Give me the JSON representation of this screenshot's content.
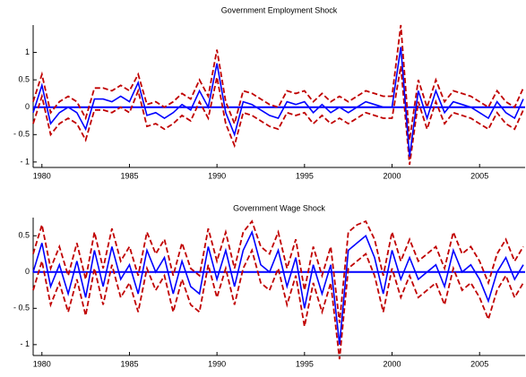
{
  "chart_data": [
    {
      "type": "line",
      "title": "Government Employment Shock",
      "x": [
        1979.5,
        1980,
        1980.5,
        1981,
        1981.5,
        1982,
        1982.5,
        1983,
        1983.5,
        1984,
        1984.5,
        1985,
        1985.5,
        1986,
        1986.5,
        1987,
        1987.5,
        1988,
        1988.5,
        1989,
        1989.5,
        1990,
        1990.5,
        1991,
        1991.5,
        1992,
        1992.5,
        1993,
        1993.5,
        1994,
        1994.5,
        1995,
        1995.5,
        1996,
        1996.5,
        1997,
        1997.5,
        1998,
        1998.5,
        1999,
        1999.5,
        2000,
        2000.5,
        2001,
        2001.5,
        2002,
        2002.5,
        2003,
        2003.5,
        2004,
        2004.5,
        2005,
        2005.5,
        2006,
        2006.5,
        2007,
        2007.5
      ],
      "series": [
        {
          "color": "#c00000",
          "style": "dashed",
          "values": [
            0.1,
            0.6,
            -0.1,
            0.1,
            0.2,
            0.1,
            -0.2,
            0.35,
            0.35,
            0.3,
            0.4,
            0.3,
            0.6,
            0.05,
            0.1,
            0.0,
            0.1,
            0.25,
            0.15,
            0.5,
            0.2,
            1.05,
            0.1,
            -0.3,
            0.3,
            0.25,
            0.15,
            0.05,
            0.0,
            0.3,
            0.25,
            0.3,
            0.1,
            0.25,
            0.1,
            0.2,
            0.1,
            0.2,
            0.3,
            0.25,
            0.2,
            0.2,
            1.5,
            -0.6,
            0.5,
            0.0,
            0.5,
            0.1,
            0.3,
            0.25,
            0.2,
            0.1,
            0.0,
            0.3,
            0.1,
            0.0,
            0.35
          ]
        },
        {
          "color": "#c00000",
          "style": "dashed",
          "values": [
            -0.3,
            0.2,
            -0.5,
            -0.3,
            -0.2,
            -0.3,
            -0.6,
            -0.05,
            -0.05,
            -0.1,
            0.0,
            -0.1,
            0.3,
            -0.35,
            -0.3,
            -0.4,
            -0.3,
            -0.15,
            -0.25,
            0.1,
            -0.2,
            0.55,
            -0.3,
            -0.7,
            -0.1,
            -0.15,
            -0.25,
            -0.35,
            -0.4,
            -0.1,
            -0.15,
            -0.1,
            -0.3,
            -0.15,
            -0.3,
            -0.2,
            -0.3,
            -0.2,
            -0.1,
            -0.15,
            -0.2,
            -0.2,
            0.75,
            -1.05,
            0.1,
            -0.4,
            0.1,
            -0.3,
            -0.1,
            -0.15,
            -0.2,
            -0.3,
            -0.4,
            -0.1,
            -0.3,
            -0.4,
            -0.05
          ]
        },
        {
          "color": "#0000ff",
          "style": "solid",
          "values": [
            -0.1,
            0.4,
            -0.3,
            -0.1,
            0.0,
            -0.1,
            -0.4,
            0.15,
            0.15,
            0.1,
            0.2,
            0.1,
            0.45,
            -0.15,
            -0.1,
            -0.2,
            -0.1,
            0.05,
            -0.05,
            0.3,
            0.0,
            0.8,
            -0.1,
            -0.5,
            0.1,
            0.05,
            -0.05,
            -0.15,
            -0.2,
            0.1,
            0.05,
            0.1,
            -0.1,
            0.05,
            -0.1,
            0.0,
            -0.1,
            0.0,
            0.1,
            0.05,
            0.0,
            0.0,
            1.1,
            -0.9,
            0.3,
            -0.2,
            0.3,
            -0.1,
            0.1,
            0.05,
            0.0,
            -0.1,
            -0.2,
            0.1,
            -0.1,
            -0.2,
            0.15
          ]
        }
      ],
      "zero_line_color": "#0000ff",
      "xlim": [
        1979.5,
        2007.6
      ],
      "xticks": [
        1980,
        1985,
        1990,
        1995,
        2000,
        2005
      ],
      "ylim": [
        -1.1,
        1.5
      ],
      "yticks": [
        {
          "value": -1,
          "label": "- 1"
        },
        {
          "value": -0.5,
          "label": "- 0.5"
        },
        0,
        0.5,
        1
      ]
    },
    {
      "type": "line",
      "title": "Government Wage Shock",
      "x": [
        1979.5,
        1980,
        1980.5,
        1981,
        1981.5,
        1982,
        1982.5,
        1983,
        1983.5,
        1984,
        1984.5,
        1985,
        1985.5,
        1986,
        1986.5,
        1987,
        1987.5,
        1988,
        1988.5,
        1989,
        1989.5,
        1990,
        1990.5,
        1991,
        1991.5,
        1992,
        1992.5,
        1993,
        1993.5,
        1994,
        1994.5,
        1995,
        1995.5,
        1996,
        1996.5,
        1997,
        1997.5,
        1998,
        1998.5,
        1999,
        1999.5,
        2000,
        2000.5,
        2001,
        2001.5,
        2002,
        2002.5,
        2003,
        2003.5,
        2004,
        2004.5,
        2005,
        2005.5,
        2006,
        2006.5,
        2007,
        2007.5
      ],
      "series": [
        {
          "color": "#c00000",
          "style": "dashed",
          "values": [
            0.25,
            0.65,
            0.05,
            0.35,
            -0.05,
            0.4,
            -0.1,
            0.55,
            0.05,
            0.6,
            0.15,
            0.35,
            -0.05,
            0.55,
            0.25,
            0.45,
            -0.05,
            0.4,
            0.05,
            -0.05,
            0.6,
            0.15,
            0.55,
            0.05,
            0.55,
            0.7,
            0.35,
            0.25,
            0.55,
            0.05,
            0.45,
            -0.25,
            0.35,
            -0.05,
            0.35,
            -0.7,
            0.55,
            0.65,
            0.7,
            0.45,
            -0.05,
            0.55,
            0.15,
            0.45,
            0.15,
            0.25,
            0.35,
            0.05,
            0.55,
            0.25,
            0.35,
            0.15,
            -0.15,
            0.25,
            0.45,
            0.15,
            0.35
          ]
        },
        {
          "color": "#c00000",
          "style": "dashed",
          "values": [
            -0.25,
            0.15,
            -0.45,
            -0.15,
            -0.55,
            -0.1,
            -0.6,
            0.05,
            -0.45,
            0.1,
            -0.35,
            -0.15,
            -0.55,
            0.05,
            -0.25,
            -0.05,
            -0.55,
            -0.1,
            -0.45,
            -0.55,
            0.1,
            -0.35,
            0.05,
            -0.45,
            0.05,
            0.3,
            -0.15,
            -0.25,
            0.05,
            -0.45,
            -0.05,
            -0.75,
            -0.15,
            -0.55,
            -0.15,
            -1.2,
            0.05,
            0.15,
            0.25,
            -0.05,
            -0.55,
            0.05,
            -0.35,
            -0.05,
            -0.35,
            -0.25,
            -0.15,
            -0.45,
            0.05,
            -0.25,
            -0.15,
            -0.35,
            -0.65,
            -0.25,
            -0.05,
            -0.35,
            -0.15
          ]
        },
        {
          "color": "#0000ff",
          "style": "solid",
          "values": [
            0.0,
            0.4,
            -0.2,
            0.1,
            -0.3,
            0.15,
            -0.35,
            0.3,
            -0.2,
            0.35,
            -0.1,
            0.1,
            -0.3,
            0.3,
            0.0,
            0.2,
            -0.3,
            0.15,
            -0.2,
            -0.3,
            0.35,
            -0.1,
            0.3,
            -0.2,
            0.3,
            0.55,
            0.1,
            0.0,
            0.3,
            -0.2,
            0.2,
            -0.5,
            0.1,
            -0.3,
            0.1,
            -1.0,
            0.3,
            0.4,
            0.5,
            0.2,
            -0.3,
            0.3,
            -0.1,
            0.2,
            -0.1,
            0.0,
            0.1,
            -0.2,
            0.3,
            0.0,
            0.1,
            -0.1,
            -0.4,
            0.0,
            0.2,
            -0.1,
            0.1
          ]
        }
      ],
      "zero_line_color": "#0000ff",
      "xlim": [
        1979.5,
        2007.6
      ],
      "xticks": [
        1980,
        1985,
        1990,
        1995,
        2000,
        2005
      ],
      "ylim": [
        -1.15,
        0.75
      ],
      "yticks": [
        {
          "value": -1,
          "label": "- 1"
        },
        {
          "value": -0.5,
          "label": "- 0.5"
        },
        0,
        0.5
      ]
    }
  ]
}
